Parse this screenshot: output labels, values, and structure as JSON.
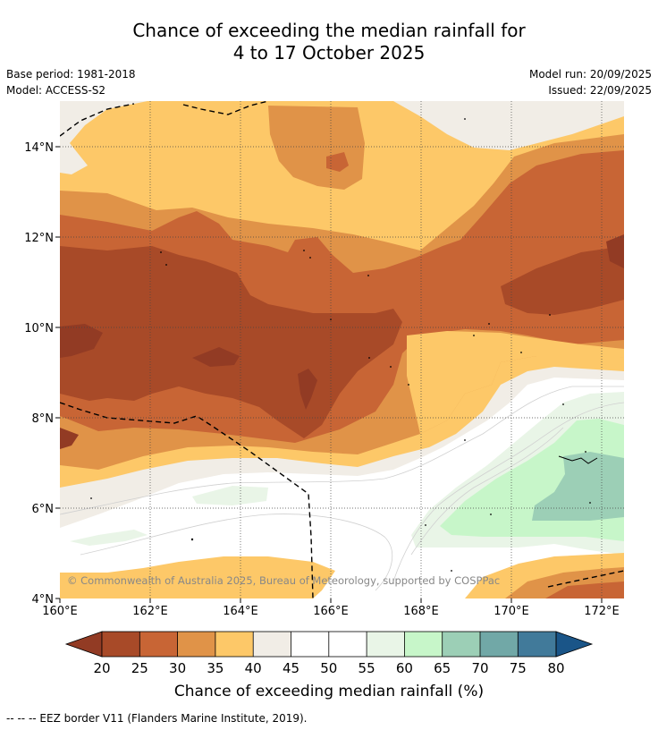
{
  "header": {
    "title_line1": "Chance of exceeding the median rainfall for",
    "title_line2": "4 to 17 October 2025",
    "base_period": "Base period: 1981-2018",
    "model": "Model: ACCESS-S2",
    "model_run": "Model run: 20/09/2025",
    "issued": "Issued: 22/09/2025"
  },
  "map": {
    "lon_ticks": [
      "160°E",
      "162°E",
      "164°E",
      "166°E",
      "168°E",
      "170°E",
      "172°E"
    ],
    "lat_ticks": [
      "14°N",
      "12°N",
      "10°N",
      "8°N",
      "6°N",
      "4°N"
    ],
    "copyright": "© Commonwealth of Australia 2025, Bureau of Meteorology, supported by COSPPac",
    "colors": {
      "lt20": "#923b24",
      "c20_25": "#a84a28",
      "c25_30": "#c86535",
      "c30_35": "#e09348",
      "c35_40": "#fdc868",
      "c40_45": "#f1ede6",
      "c45_55": "#ffffff",
      "c55_60": "#e9f5e7",
      "c60_65": "#c7f6c9",
      "c65_70": "#9ccfb6",
      "c70_75": "#71a8a7",
      "c75_80": "#417a9a",
      "gt80": "#1a5588"
    }
  },
  "colorbar": {
    "labels": [
      "20",
      "25",
      "30",
      "35",
      "40",
      "45",
      "50",
      "55",
      "60",
      "65",
      "70",
      "75",
      "80"
    ],
    "title": "Chance of exceeding median rainfall (%)"
  },
  "footer": {
    "eez_note": "--  --  -- EEZ border V11 (Flanders Marine Institute, 2019)."
  }
}
